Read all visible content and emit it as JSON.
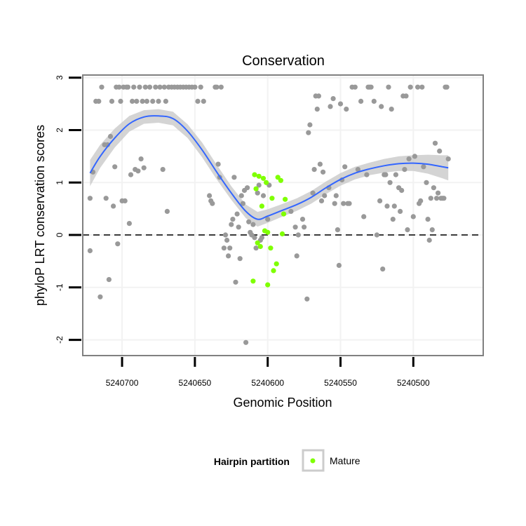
{
  "chart_data": {
    "type": "scatter",
    "title": "Conservation",
    "xlabel": "Genomic Position",
    "ylabel": "phyloP LRT conservation scores",
    "x_reversed": true,
    "xlim": [
      5240727,
      5240452
    ],
    "ylim": [
      -2.3,
      3.05
    ],
    "x_ticks": [
      5240700,
      5240650,
      5240600,
      5240550,
      5240500
    ],
    "x_tick_labels": [
      "5240700",
      "5240650",
      "5240600",
      "5240550",
      "5240500"
    ],
    "y_ticks": [
      -2,
      -1,
      0,
      1,
      2,
      3
    ],
    "y_tick_labels": [
      "-2",
      "-1",
      "0",
      "1",
      "2",
      "3"
    ],
    "grid": true,
    "reference_line": {
      "y": 0,
      "style": "dashed"
    },
    "legend": {
      "title": "Hairpin partition",
      "position": "bottom",
      "entries": [
        {
          "label": "Mature",
          "color": "#7fff00"
        }
      ]
    },
    "colors": {
      "other": "#999999",
      "mature": "#7fff00",
      "trend": "#3366ff",
      "band": "#cccccc"
    },
    "series": [
      {
        "group": "other",
        "points": [
          [
            5240722,
            -0.3
          ],
          [
            5240722,
            0.7
          ],
          [
            5240720,
            1.2
          ],
          [
            5240718,
            2.55
          ],
          [
            5240716,
            2.55
          ],
          [
            5240715,
            -1.18
          ],
          [
            5240714,
            2.82
          ],
          [
            5240712,
            1.72
          ],
          [
            5240711,
            0.7
          ],
          [
            5240710,
            1.72
          ],
          [
            5240709,
            -0.85
          ],
          [
            5240708,
            1.88
          ],
          [
            5240707,
            2.55
          ],
          [
            5240706,
            0.55
          ],
          [
            5240705,
            1.3
          ],
          [
            5240704,
            2.82
          ],
          [
            5240703,
            -0.17
          ],
          [
            5240702,
            2.82
          ],
          [
            5240701,
            2.55
          ],
          [
            5240700,
            0.65
          ],
          [
            5240699,
            2.82
          ],
          [
            5240698,
            0.65
          ],
          [
            5240697,
            2.82
          ],
          [
            5240696,
            2.82
          ],
          [
            5240695,
            0.22
          ],
          [
            5240694,
            1.15
          ],
          [
            5240693,
            2.55
          ],
          [
            5240692,
            2.82
          ],
          [
            5240691,
            1.25
          ],
          [
            5240690,
            2.55
          ],
          [
            5240689,
            1.22
          ],
          [
            5240688,
            2.82
          ],
          [
            5240687,
            1.45
          ],
          [
            5240686,
            2.55
          ],
          [
            5240685,
            1.28
          ],
          [
            5240684,
            2.82
          ],
          [
            5240683,
            2.55
          ],
          [
            5240681,
            2.82
          ],
          [
            5240679,
            2.55
          ],
          [
            5240677,
            2.82
          ],
          [
            5240675,
            2.55
          ],
          [
            5240674,
            2.82
          ],
          [
            5240672,
            1.25
          ],
          [
            5240671,
            2.82
          ],
          [
            5240670,
            2.55
          ],
          [
            5240669,
            0.45
          ],
          [
            5240668,
            2.82
          ],
          [
            5240666,
            2.82
          ],
          [
            5240664,
            2.82
          ],
          [
            5240662,
            2.82
          ],
          [
            5240660,
            2.82
          ],
          [
            5240658,
            2.82
          ],
          [
            5240656,
            2.82
          ],
          [
            5240654,
            2.82
          ],
          [
            5240652,
            2.82
          ],
          [
            5240650,
            2.82
          ],
          [
            5240648,
            2.55
          ],
          [
            5240646,
            2.82
          ],
          [
            5240644,
            2.55
          ],
          [
            5240640,
            0.75
          ],
          [
            5240639,
            0.65
          ],
          [
            5240638,
            0.6
          ],
          [
            5240636,
            2.82
          ],
          [
            5240635,
            2.82
          ],
          [
            5240634,
            1.35
          ],
          [
            5240633,
            1.1
          ],
          [
            5240632,
            2.82
          ],
          [
            5240630,
            -0.25
          ],
          [
            5240629,
            0.0
          ],
          [
            5240628,
            -0.1
          ],
          [
            5240627,
            -0.4
          ],
          [
            5240626,
            -0.25
          ],
          [
            5240625,
            0.2
          ],
          [
            5240624,
            0.3
          ],
          [
            5240623,
            1.1
          ],
          [
            5240622,
            -0.9
          ],
          [
            5240621,
            0.4
          ],
          [
            5240620,
            0.15
          ],
          [
            5240619,
            -0.45
          ],
          [
            5240618,
            0.75
          ],
          [
            5240617,
            0.6
          ],
          [
            5240616,
            0.85
          ],
          [
            5240615,
            -2.05
          ],
          [
            5240614,
            0.9
          ],
          [
            5240613,
            0.25
          ],
          [
            5240612,
            0.05
          ],
          [
            5240611,
            0.0
          ],
          [
            5240610,
            0.2
          ],
          [
            5240609,
            -0.05
          ],
          [
            5240608,
            -0.25
          ],
          [
            5240607,
            0.8
          ],
          [
            5240606,
            0.95
          ],
          [
            5240605,
            -0.1
          ],
          [
            5240604,
            -0.05
          ],
          [
            5240603,
            0.75
          ],
          [
            5240600,
            0.3
          ],
          [
            5240599,
            0.95
          ],
          [
            5240584,
            0.45
          ],
          [
            5240581,
            0.15
          ],
          [
            5240580,
            -0.4
          ],
          [
            5240579,
            0.0
          ],
          [
            5240576,
            0.3
          ],
          [
            5240575,
            0.15
          ],
          [
            5240573,
            -1.22
          ],
          [
            5240572,
            1.95
          ],
          [
            5240571,
            2.1
          ],
          [
            5240569,
            0.8
          ],
          [
            5240568,
            1.25
          ],
          [
            5240567,
            2.65
          ],
          [
            5240566,
            2.4
          ],
          [
            5240565,
            2.65
          ],
          [
            5240564,
            1.35
          ],
          [
            5240563,
            0.65
          ],
          [
            5240562,
            1.2
          ],
          [
            5240561,
            0.75
          ],
          [
            5240558,
            0.9
          ],
          [
            5240557,
            2.45
          ],
          [
            5240555,
            2.6
          ],
          [
            5240554,
            0.6
          ],
          [
            5240553,
            0.75
          ],
          [
            5240552,
            0.1
          ],
          [
            5240551,
            -0.58
          ],
          [
            5240550,
            2.5
          ],
          [
            5240549,
            1.05
          ],
          [
            5240548,
            0.6
          ],
          [
            5240547,
            1.3
          ],
          [
            5240546,
            2.4
          ],
          [
            5240545,
            0.6
          ],
          [
            5240544,
            0.6
          ],
          [
            5240542,
            2.82
          ],
          [
            5240540,
            2.82
          ],
          [
            5240538,
            1.25
          ],
          [
            5240536,
            2.55
          ],
          [
            5240534,
            0.35
          ],
          [
            5240532,
            1.15
          ],
          [
            5240531,
            2.82
          ],
          [
            5240530,
            2.82
          ],
          [
            5240529,
            2.82
          ],
          [
            5240527,
            2.55
          ],
          [
            5240525,
            0.0
          ],
          [
            5240523,
            0.65
          ],
          [
            5240522,
            2.45
          ],
          [
            5240521,
            -0.65
          ],
          [
            5240520,
            1.15
          ],
          [
            5240519,
            1.15
          ],
          [
            5240518,
            0.55
          ],
          [
            5240517,
            2.82
          ],
          [
            5240516,
            1.0
          ],
          [
            5240515,
            2.4
          ],
          [
            5240514,
            0.3
          ],
          [
            5240513,
            0.55
          ],
          [
            5240512,
            1.15
          ],
          [
            5240510,
            0.9
          ],
          [
            5240509,
            0.45
          ],
          [
            5240508,
            0.85
          ],
          [
            5240507,
            2.65
          ],
          [
            5240506,
            1.25
          ],
          [
            5240505,
            2.65
          ],
          [
            5240504,
            0.1
          ],
          [
            5240503,
            1.45
          ],
          [
            5240502,
            2.82
          ],
          [
            5240500,
            0.35
          ],
          [
            5240499,
            1.5
          ],
          [
            5240497,
            2.82
          ],
          [
            5240496,
            0.6
          ],
          [
            5240495,
            0.65
          ],
          [
            5240494,
            2.82
          ],
          [
            5240493,
            1.3
          ],
          [
            5240491,
            1.0
          ],
          [
            5240490,
            0.3
          ],
          [
            5240489,
            -0.1
          ],
          [
            5240488,
            0.7
          ],
          [
            5240487,
            0.1
          ],
          [
            5240486,
            0.9
          ],
          [
            5240485,
            1.75
          ],
          [
            5240484,
            0.7
          ],
          [
            5240483,
            0.8
          ],
          [
            5240482,
            1.6
          ],
          [
            5240481,
            0.7
          ],
          [
            5240480,
            0.7
          ],
          [
            5240479,
            0.7
          ],
          [
            5240478,
            2.82
          ],
          [
            5240477,
            2.82
          ],
          [
            5240476,
            1.45
          ]
        ]
      },
      {
        "group": "mature",
        "name": "Mature",
        "points": [
          [
            5240608,
            0.88
          ],
          [
            5240606,
            1.12
          ],
          [
            5240604,
            0.55
          ],
          [
            5240602,
            0.08
          ],
          [
            5240600,
            0.05
          ],
          [
            5240598,
            -0.25
          ],
          [
            5240597,
            0.7
          ],
          [
            5240596,
            -0.68
          ],
          [
            5240594,
            -0.55
          ],
          [
            5240593,
            1.1
          ],
          [
            5240591,
            1.04
          ],
          [
            5240590,
            0.02
          ],
          [
            5240589,
            0.4
          ],
          [
            5240588,
            0.68
          ],
          [
            5240605,
            -0.22
          ],
          [
            5240607,
            -0.15
          ],
          [
            5240603,
            1.08
          ],
          [
            5240601,
            1.0
          ],
          [
            5240610,
            -0.88
          ],
          [
            5240609,
            1.15
          ],
          [
            5240600,
            -0.95
          ]
        ]
      }
    ],
    "trend": {
      "method": "smooth",
      "x": [
        5240722,
        5240715,
        5240705,
        5240695,
        5240685,
        5240675,
        5240665,
        5240655,
        5240645,
        5240635,
        5240625,
        5240615,
        5240607,
        5240600,
        5240590,
        5240580,
        5240570,
        5240560,
        5240550,
        5240540,
        5240530,
        5240520,
        5240510,
        5240500,
        5240490,
        5240480,
        5240476
      ],
      "y": [
        1.18,
        1.5,
        1.85,
        2.12,
        2.25,
        2.27,
        2.22,
        1.98,
        1.62,
        1.2,
        0.8,
        0.45,
        0.3,
        0.36,
        0.47,
        0.58,
        0.72,
        0.9,
        1.06,
        1.18,
        1.26,
        1.32,
        1.36,
        1.37,
        1.35,
        1.3,
        1.28
      ],
      "band_half_width": [
        0.25,
        0.22,
        0.18,
        0.15,
        0.13,
        0.13,
        0.13,
        0.13,
        0.14,
        0.14,
        0.13,
        0.13,
        0.14,
        0.13,
        0.12,
        0.12,
        0.12,
        0.12,
        0.12,
        0.12,
        0.12,
        0.13,
        0.14,
        0.15,
        0.18,
        0.22,
        0.24
      ]
    }
  }
}
